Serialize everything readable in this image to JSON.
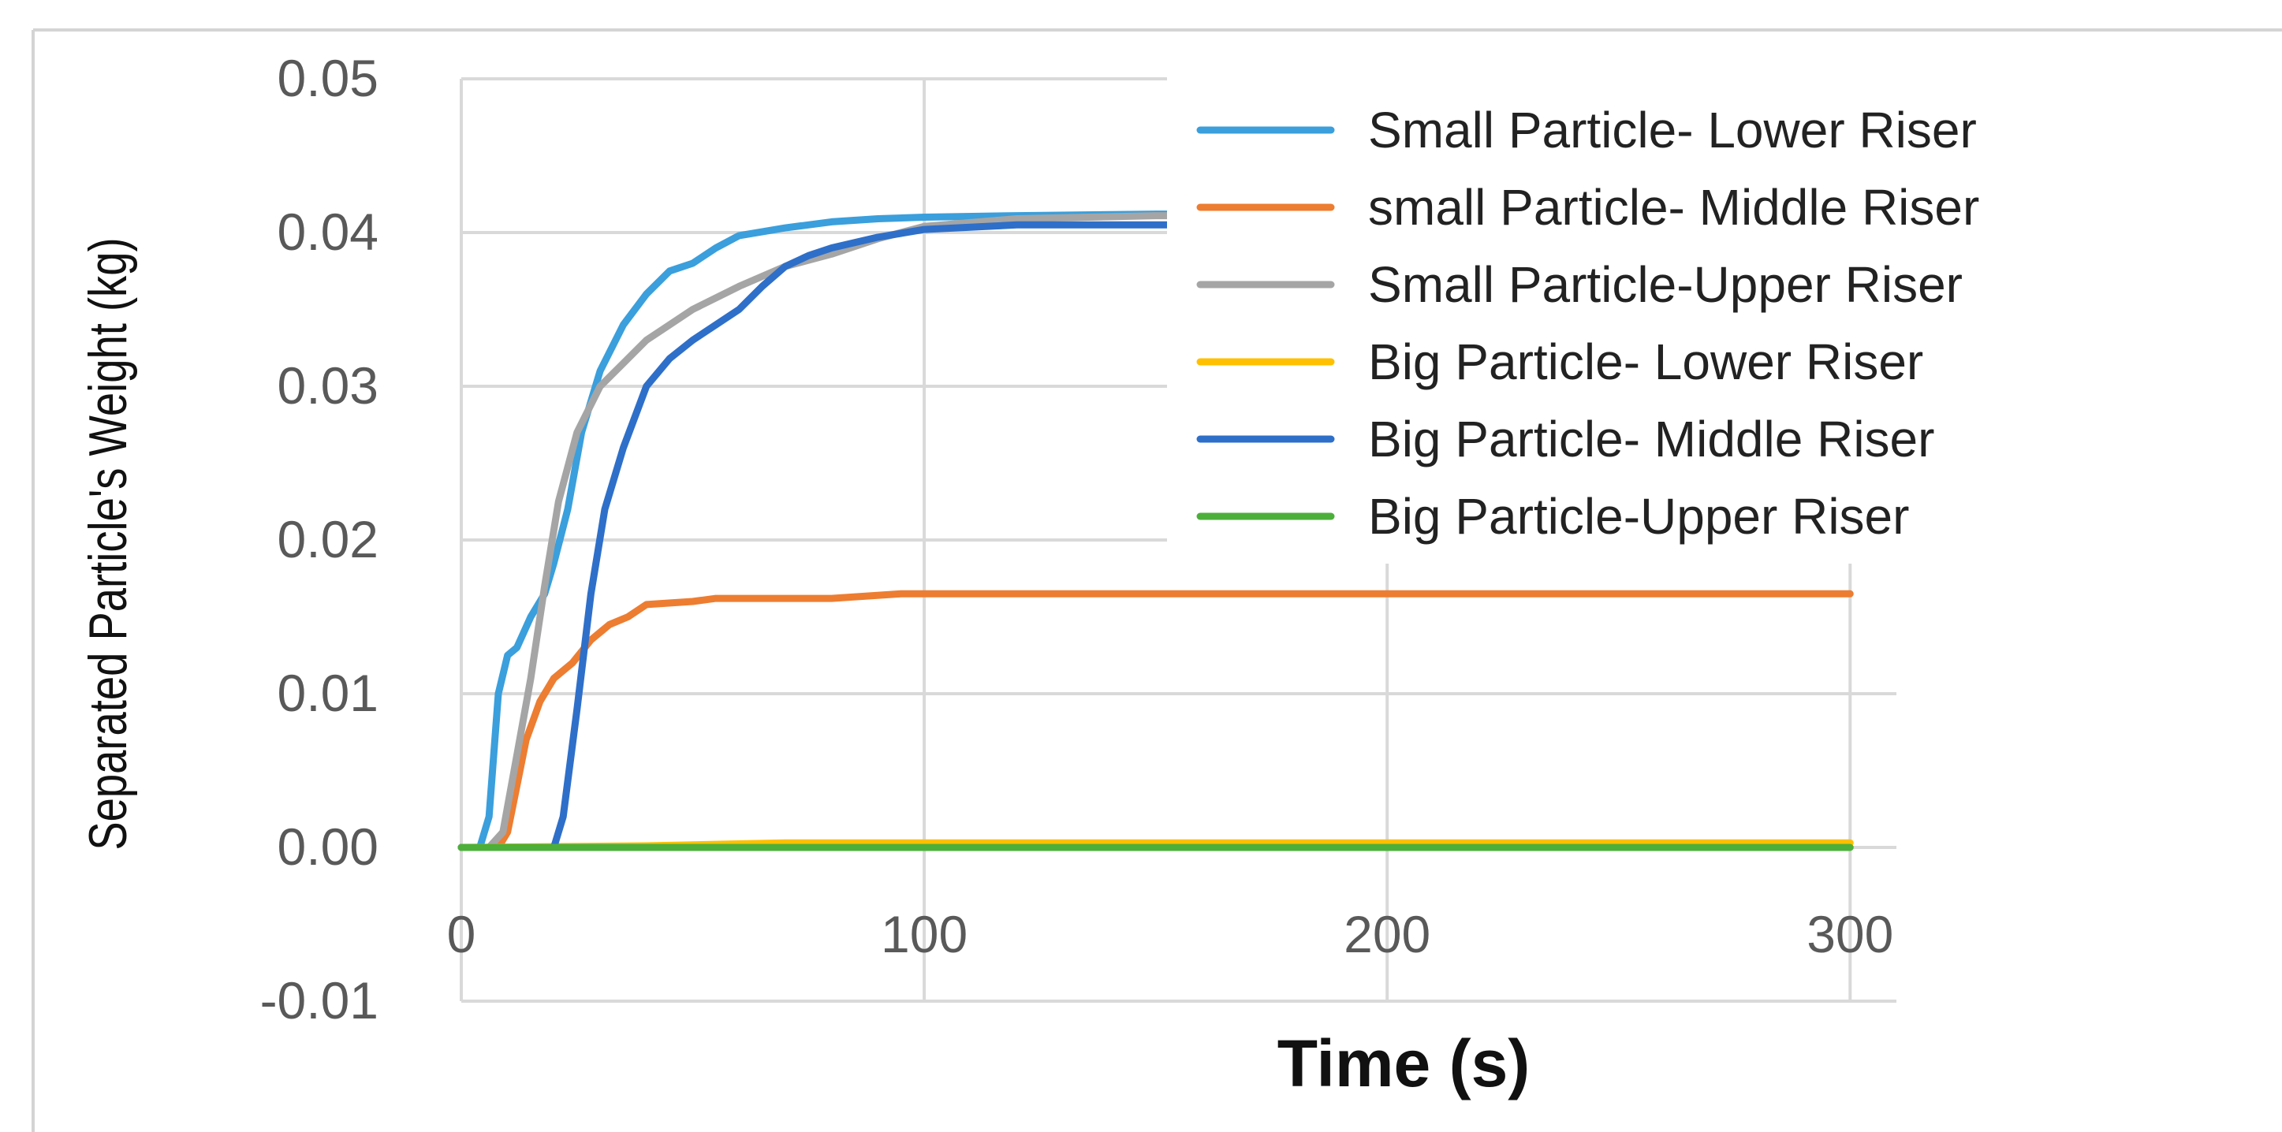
{
  "chart_data": {
    "type": "line",
    "title": "",
    "xlabel": "Time (s)",
    "ylabel": "Separated Particle's Weight (kg)",
    "xlim": [
      0,
      310
    ],
    "ylim": [
      -0.01,
      0.05
    ],
    "x_ticks": [
      0,
      100,
      200,
      300
    ],
    "x_tick_labels": [
      "0",
      "100",
      "200",
      "300"
    ],
    "y_ticks": [
      -0.01,
      0.0,
      0.01,
      0.02,
      0.03,
      0.04,
      0.05
    ],
    "y_tick_labels": [
      "-0.01",
      "0.00",
      "0.01",
      "0.02",
      "0.03",
      "0.04",
      "0.05"
    ],
    "grid": true,
    "legend_position": "top-right",
    "series": [
      {
        "name": "Small Particle- Lower Riser",
        "color": "#3a9fdc",
        "x": [
          0,
          4,
          6,
          8,
          10,
          12,
          15,
          18,
          20,
          23,
          26,
          30,
          35,
          40,
          45,
          50,
          55,
          60,
          70,
          80,
          90,
          100,
          120,
          150,
          158
        ],
        "y": [
          0,
          0,
          0.002,
          0.01,
          0.0125,
          0.013,
          0.015,
          0.0165,
          0.0185,
          0.022,
          0.027,
          0.031,
          0.034,
          0.036,
          0.0375,
          0.038,
          0.039,
          0.0398,
          0.0403,
          0.0407,
          0.0409,
          0.041,
          0.0411,
          0.0412,
          0.0412
        ]
      },
      {
        "name": "small Particle- Middle Riser",
        "color": "#ed7d31",
        "x": [
          0,
          8,
          10,
          12,
          14,
          17,
          20,
          24,
          28,
          32,
          36,
          40,
          50,
          55,
          60,
          80,
          95,
          100,
          150,
          200,
          250,
          300
        ],
        "y": [
          0,
          0,
          0.001,
          0.004,
          0.007,
          0.0095,
          0.011,
          0.012,
          0.0135,
          0.0145,
          0.015,
          0.0158,
          0.016,
          0.0162,
          0.0162,
          0.0162,
          0.0165,
          0.0165,
          0.0165,
          0.0165,
          0.0165,
          0.0165
        ]
      },
      {
        "name": "Small Particle-Upper Riser",
        "color": "#a5a5a5",
        "x": [
          0,
          6,
          9,
          12,
          15,
          18,
          21,
          25,
          30,
          35,
          40,
          45,
          50,
          60,
          70,
          80,
          90,
          100,
          120,
          150,
          158
        ],
        "y": [
          0,
          0,
          0.001,
          0.006,
          0.011,
          0.017,
          0.0225,
          0.027,
          0.03,
          0.0315,
          0.033,
          0.034,
          0.035,
          0.0365,
          0.0378,
          0.0386,
          0.0396,
          0.0404,
          0.0409,
          0.0411,
          0.0411
        ]
      },
      {
        "name": "Big Particle- Lower Riser",
        "color": "#ffc000",
        "x": [
          0,
          40,
          70,
          100,
          150,
          200,
          250,
          300
        ],
        "y": [
          0,
          0.0001,
          0.0003,
          0.0003,
          0.0003,
          0.0003,
          0.0003,
          0.0003
        ]
      },
      {
        "name": "Big Particle- Middle Riser",
        "color": "#2e6fc9",
        "x": [
          0,
          20,
          22,
          25,
          28,
          31,
          35,
          40,
          45,
          50,
          55,
          60,
          65,
          70,
          75,
          80,
          90,
          100,
          120,
          150,
          158
        ],
        "y": [
          0,
          0,
          0.002,
          0.009,
          0.0165,
          0.022,
          0.026,
          0.03,
          0.0318,
          0.033,
          0.034,
          0.035,
          0.0365,
          0.0378,
          0.0385,
          0.039,
          0.0397,
          0.0402,
          0.0405,
          0.0405,
          0.0405
        ]
      },
      {
        "name": "Big Particle-Upper Riser",
        "color": "#4caf3a",
        "x": [
          0,
          100,
          200,
          300
        ],
        "y": [
          0,
          0,
          0,
          0
        ]
      }
    ]
  }
}
